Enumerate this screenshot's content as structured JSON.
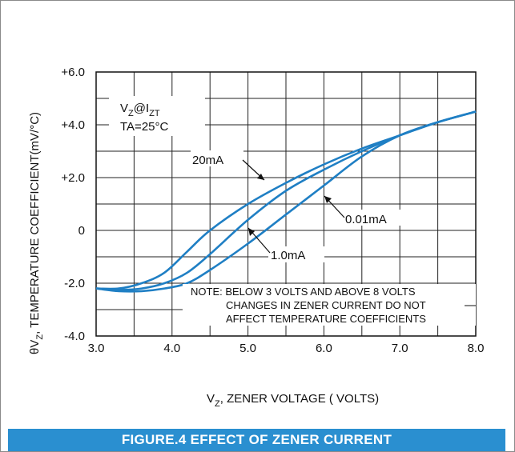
{
  "chart_data": {
    "type": "line",
    "xlabel": "V_Z, ZENER VOLTAGE ( VOLTS)",
    "ylabel": "θV_Z, TEMPERATURE COEFFICIENT(mV/°C)",
    "xlim": [
      3.0,
      8.0
    ],
    "ylim": [
      -4.0,
      6.0
    ],
    "x_ticks": [
      "3.0",
      "4.0",
      "5.0",
      "6.0",
      "7.0",
      "8.0"
    ],
    "y_ticks": [
      "+6.0",
      "+4.0",
      "+2.0",
      "0",
      "-2.0",
      "-4.0"
    ],
    "grid": true,
    "series": [
      {
        "name": "20mA",
        "x": [
          3.0,
          3.3,
          3.6,
          3.9,
          4.2,
          4.5,
          5.0,
          5.5,
          6.0,
          6.5,
          7.0,
          7.5,
          8.0
        ],
        "y": [
          -2.2,
          -2.2,
          -2.0,
          -1.6,
          -0.8,
          0.0,
          1.0,
          1.8,
          2.5,
          3.1,
          3.6,
          4.1,
          4.5
        ]
      },
      {
        "name": "1.0mA",
        "x": [
          3.0,
          3.3,
          3.6,
          3.9,
          4.2,
          4.5,
          5.0,
          5.5,
          6.0,
          6.5,
          7.0,
          7.5,
          8.0
        ],
        "y": [
          -2.2,
          -2.25,
          -2.2,
          -2.0,
          -1.6,
          -0.9,
          0.4,
          1.5,
          2.3,
          3.0,
          3.6,
          4.1,
          4.5
        ]
      },
      {
        "name": "0.01mA",
        "x": [
          3.0,
          3.3,
          3.6,
          3.9,
          4.2,
          4.5,
          5.0,
          5.5,
          6.0,
          6.5,
          7.0,
          7.5,
          8.0
        ],
        "y": [
          -2.2,
          -2.3,
          -2.3,
          -2.2,
          -2.0,
          -1.5,
          -0.5,
          0.6,
          1.7,
          2.8,
          3.6,
          4.1,
          4.5
        ]
      }
    ],
    "annotations": {
      "condition_line1": "V_Z@I_ZT",
      "condition_line2": "TA=25°C",
      "label_20mA": "20mA",
      "label_0_01mA": "0.01mA",
      "label_1_0mA": "1.0mA",
      "note_line1": "NOTE: BELOW 3 VOLTS AND ABOVE 8 VOLTS",
      "note_line2": "CHANGES IN ZENER CURRENT DO NOT",
      "note_line3": "AFFECT TEMPERATURE COEFFICIENTS"
    },
    "line_color": "#1f7fc4"
  },
  "caption": "FIGURE.4 EFFECT OF ZENER CURRENT"
}
